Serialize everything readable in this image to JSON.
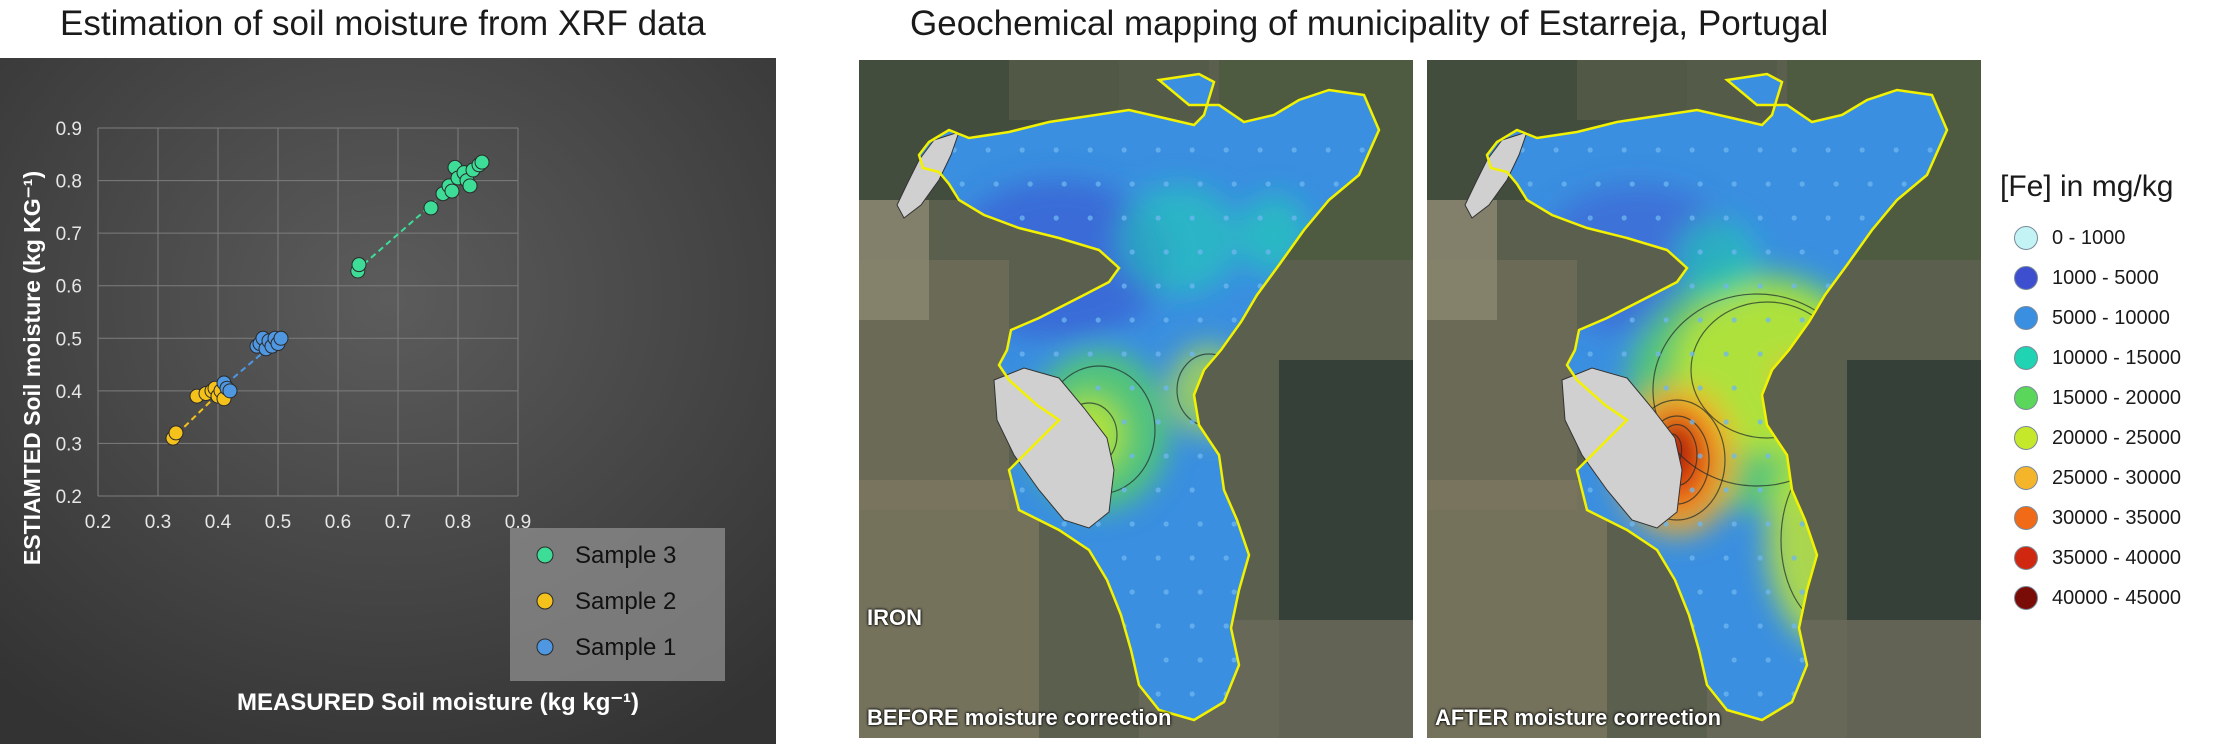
{
  "titles": {
    "left": "Estimation of soil moisture from XRF data",
    "right": "Geochemical mapping of municipality of Estarreja, Portugal"
  },
  "chart_data": {
    "type": "scatter",
    "xlabel": "MEASURED Soil moisture (kg kg⁻¹)",
    "ylabel": "ESTIAMTED Soil moisture (kg KG⁻¹)",
    "xlim": [
      0.2,
      0.9
    ],
    "ylim": [
      0.2,
      0.9
    ],
    "xticks": [
      "0.2",
      "0.3",
      "0.4",
      "0.5",
      "0.6",
      "0.7",
      "0.8",
      "0.9"
    ],
    "yticks": [
      "0.2",
      "0.3",
      "0.4",
      "0.5",
      "0.6",
      "0.7",
      "0.8",
      "0.9"
    ],
    "grid": true,
    "legend_position": "bottom-right",
    "series": [
      {
        "name": "Sample 3",
        "color": "#3ddc97",
        "trend": [
          [
            0.63,
            0.628
          ],
          [
            0.84,
            0.838
          ]
        ],
        "points": [
          [
            0.633,
            0.628
          ],
          [
            0.635,
            0.64
          ],
          [
            0.755,
            0.748
          ],
          [
            0.775,
            0.775
          ],
          [
            0.785,
            0.79
          ],
          [
            0.79,
            0.78
          ],
          [
            0.795,
            0.825
          ],
          [
            0.8,
            0.805
          ],
          [
            0.81,
            0.815
          ],
          [
            0.815,
            0.8
          ],
          [
            0.82,
            0.79
          ],
          [
            0.825,
            0.82
          ],
          [
            0.835,
            0.83
          ],
          [
            0.84,
            0.835
          ]
        ]
      },
      {
        "name": "Sample 2",
        "color": "#f5c21b",
        "trend": [
          [
            0.32,
            0.305
          ],
          [
            0.41,
            0.405
          ]
        ],
        "points": [
          [
            0.325,
            0.31
          ],
          [
            0.33,
            0.32
          ],
          [
            0.365,
            0.39
          ],
          [
            0.38,
            0.395
          ],
          [
            0.39,
            0.4
          ],
          [
            0.395,
            0.405
          ],
          [
            0.4,
            0.39
          ],
          [
            0.405,
            0.4
          ],
          [
            0.41,
            0.385
          ]
        ]
      },
      {
        "name": "Sample 1",
        "color": "#4f97e0",
        "trend": [
          [
            0.4,
            0.4
          ],
          [
            0.505,
            0.502
          ]
        ],
        "points": [
          [
            0.41,
            0.415
          ],
          [
            0.415,
            0.405
          ],
          [
            0.42,
            0.4
          ],
          [
            0.465,
            0.485
          ],
          [
            0.47,
            0.49
          ],
          [
            0.475,
            0.5
          ],
          [
            0.48,
            0.48
          ],
          [
            0.485,
            0.495
          ],
          [
            0.49,
            0.485
          ],
          [
            0.495,
            0.5
          ],
          [
            0.5,
            0.49
          ],
          [
            0.505,
            0.5
          ]
        ]
      }
    ]
  },
  "maps": {
    "iron_label": "IRON",
    "before_label": "BEFORE moisture correction",
    "after_label": "AFTER moisture correction"
  },
  "legend": {
    "title": "[Fe] in mg/kg",
    "items": [
      {
        "label": "0 - 1000",
        "color": "#c4f3f5"
      },
      {
        "label": "1000 - 5000",
        "color": "#3d4fcf"
      },
      {
        "label": "5000 - 10000",
        "color": "#3a8fe0"
      },
      {
        "label": "10000 - 15000",
        "color": "#20d3b2"
      },
      {
        "label": "15000 - 20000",
        "color": "#5ad65a"
      },
      {
        "label": "20000 - 25000",
        "color": "#c6e82a"
      },
      {
        "label": "25000 - 30000",
        "color": "#f5b52a"
      },
      {
        "label": "30000 - 35000",
        "color": "#f06a18"
      },
      {
        "label": "35000 - 40000",
        "color": "#d02810"
      },
      {
        "label": "40000 - 45000",
        "color": "#7a0c08"
      }
    ]
  }
}
